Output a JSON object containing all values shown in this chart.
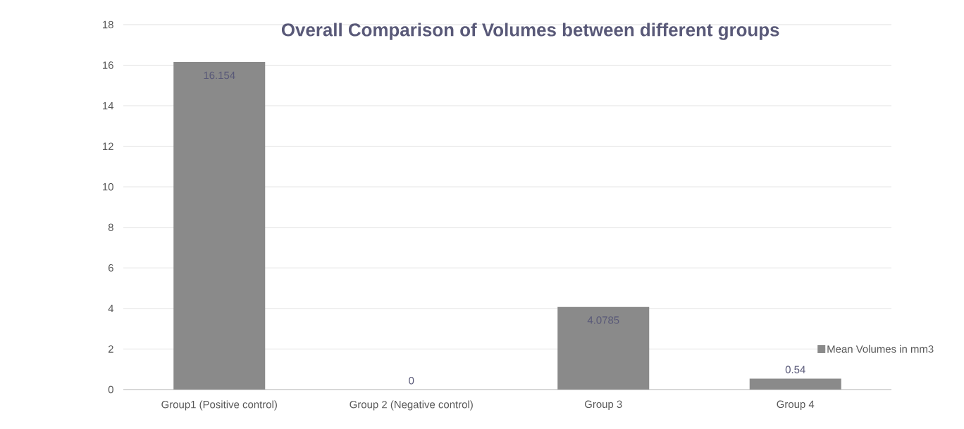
{
  "chart_data": {
    "type": "bar",
    "title": "Overall Comparison of Volumes between different groups",
    "categories": [
      "Group1 (Positive control)",
      "Group 2 (Negative control)",
      "Group 3",
      "Group 4"
    ],
    "series": [
      {
        "name": "Mean Volumes in mm3",
        "color": "#8a8a8a",
        "values": [
          16.154,
          0,
          4.0785,
          0.54
        ],
        "value_labels": [
          "16.154",
          "0",
          "4.0785",
          "0.54"
        ]
      }
    ],
    "ylim": [
      0,
      18
    ],
    "yticks": [
      0,
      2,
      4,
      6,
      8,
      10,
      12,
      14,
      16,
      18
    ],
    "grid": "y",
    "legend": "bottom right"
  }
}
